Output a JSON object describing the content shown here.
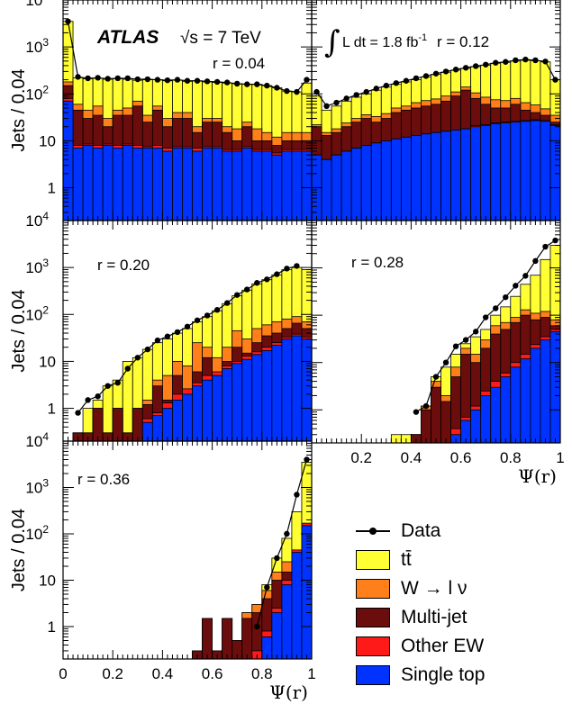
{
  "chart_data": [
    {
      "type": "area",
      "panel": "r = 0.04",
      "label": "r = 0.04",
      "ylabel": "Jets / 0.04",
      "yscale": "log",
      "ylim": [
        0.2,
        10000
      ],
      "xlim": [
        0,
        1
      ],
      "yticks": [
        "1",
        "10",
        "10²",
        "10³",
        "10⁴"
      ],
      "header": {
        "atlas": "ATLAS",
        "energy": "√s = 7 TeV"
      },
      "x_bins": [
        0,
        0.04,
        0.08,
        0.12,
        0.16,
        0.2,
        0.24,
        0.28,
        0.32,
        0.36,
        0.4,
        0.44,
        0.48,
        0.52,
        0.56,
        0.6,
        0.64,
        0.68,
        0.72,
        0.76,
        0.8,
        0.84,
        0.88,
        0.92,
        0.96
      ],
      "series": [
        {
          "name": "Single top",
          "values": [
            70,
            7,
            8,
            7,
            8,
            7,
            8,
            7,
            7,
            7,
            6,
            7,
            7,
            6,
            7,
            7,
            6,
            6,
            7,
            6,
            6,
            5,
            6,
            6,
            6
          ]
        },
        {
          "name": "Other EW",
          "values": [
            80,
            8,
            8.5,
            8,
            8.5,
            8,
            8.5,
            8,
            7.5,
            8,
            7,
            7.5,
            7.5,
            7,
            7.5,
            7.5,
            6.5,
            6.5,
            7.5,
            6.5,
            6.5,
            5.5,
            6.5,
            6.5,
            6.5
          ]
        },
        {
          "name": "Multi-jet",
          "values": [
            150,
            45,
            30,
            35,
            20,
            35,
            35,
            55,
            25,
            45,
            20,
            30,
            30,
            15,
            25,
            25,
            15,
            10,
            20,
            10,
            10,
            8,
            10,
            10,
            10
          ]
        },
        {
          "name": "W → l ν",
          "values": [
            180,
            60,
            45,
            55,
            30,
            45,
            50,
            70,
            35,
            55,
            30,
            40,
            40,
            20,
            30,
            30,
            20,
            18,
            25,
            18,
            15,
            12,
            15,
            15,
            15
          ]
        },
        {
          "name": "tt̄",
          "values": [
            3500,
            220,
            210,
            215,
            205,
            210,
            205,
            195,
            200,
            200,
            190,
            195,
            185,
            190,
            180,
            175,
            170,
            165,
            160,
            160,
            150,
            135,
            115,
            110,
            170
          ]
        }
      ],
      "data": {
        "name": "Data",
        "y": [
          3500,
          230,
          215,
          220,
          210,
          215,
          215,
          205,
          205,
          200,
          195,
          200,
          190,
          190,
          185,
          180,
          175,
          165,
          160,
          160,
          150,
          135,
          115,
          110,
          200
        ]
      }
    },
    {
      "type": "area",
      "panel": "r = 0.12",
      "label": "r = 0.12",
      "yscale": "log",
      "ylim": [
        0.2,
        10000
      ],
      "xlim": [
        0,
        1
      ],
      "header": {
        "lumi_base": "L dt = 1.8 fb",
        "lumi_exp": "-1"
      },
      "x_bins": [
        0,
        0.04,
        0.08,
        0.12,
        0.16,
        0.2,
        0.24,
        0.28,
        0.32,
        0.36,
        0.4,
        0.44,
        0.48,
        0.52,
        0.56,
        0.6,
        0.64,
        0.68,
        0.72,
        0.76,
        0.8,
        0.84,
        0.88,
        0.92,
        0.96
      ],
      "series": [
        {
          "name": "Single top",
          "values": [
            5,
            4,
            5,
            6,
            7,
            8,
            9,
            10,
            11,
            12,
            13,
            14,
            15,
            16,
            17,
            18,
            20,
            21,
            23,
            24,
            25,
            26,
            27,
            26,
            21
          ]
        },
        {
          "name": "Other EW",
          "values": [
            5,
            4,
            5,
            6,
            7,
            8,
            9,
            10,
            11,
            12,
            12,
            14,
            15,
            16,
            17,
            18,
            21,
            22,
            24,
            25,
            26,
            27,
            28,
            27,
            22
          ]
        },
        {
          "name": "Multi-jet",
          "values": [
            20,
            13,
            15,
            20,
            25,
            30,
            25,
            30,
            40,
            45,
            50,
            55,
            60,
            70,
            90,
            120,
            80,
            60,
            50,
            50,
            60,
            45,
            40,
            35,
            25
          ]
        },
        {
          "name": "W → l ν",
          "values": [
            22,
            15,
            18,
            24,
            30,
            36,
            33,
            38,
            50,
            55,
            65,
            72,
            78,
            90,
            110,
            140,
            105,
            85,
            75,
            72,
            80,
            65,
            58,
            48,
            35
          ]
        },
        {
          "name": "tt̄",
          "values": [
            90,
            45,
            55,
            70,
            85,
            100,
            120,
            140,
            160,
            180,
            200,
            230,
            260,
            290,
            320,
            350,
            380,
            410,
            450,
            470,
            500,
            520,
            510,
            480,
            200
          ]
        }
      ],
      "data": {
        "name": "Data",
        "y": [
          110,
          55,
          65,
          80,
          95,
          110,
          130,
          150,
          170,
          190,
          215,
          240,
          270,
          300,
          330,
          360,
          390,
          420,
          460,
          480,
          520,
          540,
          520,
          490,
          200
        ]
      }
    },
    {
      "type": "area",
      "panel": "r = 0.20",
      "label": "r = 0.20",
      "ylabel": "Jets / 0.04",
      "yscale": "log",
      "ylim": [
        0.2,
        10000
      ],
      "xlim": [
        0,
        1
      ],
      "yticks": [
        "1",
        "10",
        "10²",
        "10³",
        "10⁴"
      ],
      "x_bins": [
        0.04,
        0.08,
        0.12,
        0.16,
        0.2,
        0.24,
        0.28,
        0.32,
        0.36,
        0.4,
        0.44,
        0.48,
        0.52,
        0.56,
        0.6,
        0.64,
        0.68,
        0.72,
        0.76,
        0.8,
        0.84,
        0.88,
        0.92,
        0.96
      ],
      "series": [
        {
          "name": "Single top",
          "values": [
            0,
            0,
            0,
            0,
            0,
            0,
            0,
            0.5,
            0.7,
            1,
            1.5,
            2,
            3,
            4,
            5,
            7,
            9,
            11,
            14,
            17,
            22,
            30,
            35,
            30
          ]
        },
        {
          "name": "Other EW",
          "values": [
            0,
            0,
            0,
            0,
            0,
            0,
            0,
            0.6,
            0.8,
            1.3,
            2,
            2.6,
            3.5,
            5,
            6,
            8,
            10,
            13,
            16,
            20,
            25,
            33,
            38,
            33
          ]
        },
        {
          "name": "Multi-jet",
          "values": [
            0.3,
            0.3,
            1,
            0.3,
            1,
            0.3,
            1,
            1.2,
            3,
            1.5,
            5,
            2,
            6,
            12,
            4,
            10,
            20,
            15,
            25,
            35,
            40,
            50,
            65,
            50
          ]
        },
        {
          "name": "W → l ν",
          "values": [
            0.3,
            0.3,
            1,
            0.3,
            1,
            0.3,
            1,
            1.5,
            4,
            5,
            10,
            8,
            25,
            20,
            12,
            20,
            45,
            30,
            50,
            60,
            70,
            80,
            90,
            70
          ]
        },
        {
          "name": "tt̄",
          "values": [
            0.3,
            1,
            1.5,
            3,
            4,
            10,
            12,
            18,
            25,
            30,
            40,
            50,
            70,
            90,
            120,
            170,
            250,
            330,
            450,
            550,
            700,
            900,
            1000,
            900
          ]
        }
      ],
      "data": {
        "name": "Data",
        "x": [
          0.06,
          0.1,
          0.14,
          0.18,
          0.22,
          0.26,
          0.3,
          0.34,
          0.38,
          0.42,
          0.46,
          0.5,
          0.54,
          0.58,
          0.62,
          0.66,
          0.7,
          0.74,
          0.78,
          0.82,
          0.86,
          0.9,
          0.94
        ],
        "y": [
          0.8,
          1.5,
          1.8,
          3,
          3.5,
          7,
          12,
          18,
          28,
          34,
          42,
          55,
          75,
          95,
          125,
          175,
          260,
          340,
          470,
          560,
          720,
          950,
          1080
        ]
      }
    },
    {
      "type": "area",
      "panel": "r = 0.28",
      "label": "r = 0.28",
      "xlabel": "Ψ(r)",
      "yscale": "log",
      "ylim": [
        0.2,
        10000
      ],
      "xlim": [
        0,
        1
      ],
      "xticks": [
        "0.2",
        "0.4",
        "0.6",
        "0.8",
        "1"
      ],
      "x_bins": [
        0.32,
        0.36,
        0.4,
        0.44,
        0.48,
        0.52,
        0.56,
        0.6,
        0.64,
        0.68,
        0.72,
        0.76,
        0.8,
        0.84,
        0.88,
        0.92,
        0.96
      ],
      "series": [
        {
          "name": "Single top",
          "values": [
            0,
            0,
            0,
            0,
            0,
            0,
            0.3,
            0.6,
            1,
            2,
            3,
            5,
            8,
            12,
            20,
            30,
            45
          ]
        },
        {
          "name": "Other EW",
          "values": [
            0,
            0,
            0,
            0,
            0,
            0,
            0.4,
            0.7,
            1.2,
            2.5,
            4,
            6,
            10,
            15,
            24,
            35,
            50
          ]
        },
        {
          "name": "Multi-jet",
          "values": [
            0,
            0,
            0.3,
            1,
            3,
            1.5,
            5,
            15,
            10,
            20,
            40,
            50,
            70,
            100,
            80,
            90,
            60
          ]
        },
        {
          "name": "W → l ν",
          "values": [
            0,
            0,
            0.3,
            1.2,
            4,
            2,
            8,
            20,
            15,
            30,
            60,
            70,
            90,
            130,
            110,
            120,
            80
          ]
        },
        {
          "name": "tt̄",
          "values": [
            0.3,
            0.3,
            0.3,
            1.2,
            5,
            8,
            15,
            25,
            35,
            50,
            100,
            150,
            250,
            450,
            700,
            1500,
            3000
          ]
        }
      ],
      "data": {
        "name": "Data",
        "x": [
          0.42,
          0.46,
          0.5,
          0.54,
          0.58,
          0.62,
          0.66,
          0.7,
          0.74,
          0.78,
          0.82,
          0.86,
          0.9,
          0.94,
          0.98
        ],
        "y": [
          0.9,
          1.2,
          5,
          10,
          22,
          30,
          45,
          90,
          140,
          240,
          420,
          680,
          1400,
          2800,
          3800
        ]
      }
    },
    {
      "type": "area",
      "panel": "r = 0.36",
      "label": "r = 0.36",
      "ylabel": "Jets / 0.04",
      "xlabel": "Ψ(r)",
      "yscale": "log",
      "ylim": [
        0.2,
        10000
      ],
      "xlim": [
        0,
        1
      ],
      "xticks": [
        "0",
        "0.2",
        "0.4",
        "0.6",
        "0.8",
        "1"
      ],
      "yticks": [
        "1",
        "10",
        "10²",
        "10³",
        "10⁴"
      ],
      "x_bins": [
        0.52,
        0.56,
        0.6,
        0.64,
        0.68,
        0.72,
        0.76,
        0.8,
        0.84,
        0.88,
        0.92,
        0.96
      ],
      "series": [
        {
          "name": "Single top",
          "values": [
            0,
            0,
            0,
            0,
            0,
            0,
            0,
            0.6,
            2,
            8,
            40,
            150
          ]
        },
        {
          "name": "Other EW",
          "values": [
            0,
            0,
            0,
            0,
            0,
            0,
            0.3,
            0.8,
            2.5,
            10,
            45,
            170
          ]
        },
        {
          "name": "Multi-jet",
          "values": [
            0.3,
            1.5,
            0.3,
            1.5,
            0.5,
            1.5,
            2,
            4,
            10,
            15,
            20,
            50
          ]
        },
        {
          "name": "W → l ν",
          "values": [
            0.3,
            1.5,
            0.3,
            1.5,
            0.5,
            2,
            3,
            6,
            15,
            25,
            30,
            70
          ]
        },
        {
          "name": "tt̄",
          "values": [
            0.3,
            1.5,
            0.3,
            1.5,
            0.5,
            2,
            3,
            8,
            30,
            80,
            300,
            3500
          ]
        }
      ],
      "data": {
        "name": "Data",
        "x": [
          0.78,
          0.82,
          0.86,
          0.9,
          0.94,
          0.98
        ],
        "y": [
          1,
          7,
          30,
          100,
          700,
          4000
        ]
      }
    }
  ],
  "legend": [
    {
      "label": "Data",
      "kind": "line",
      "color": "#000000"
    },
    {
      "label": "tt̄",
      "kind": "box",
      "color": "#ffff33"
    },
    {
      "label": "W → l ν",
      "kind": "box",
      "color": "#ff7f1a"
    },
    {
      "label": "Multi-jet",
      "kind": "box",
      "color": "#6b0d0d"
    },
    {
      "label": "Other EW",
      "kind": "box",
      "color": "#ff1a1a"
    },
    {
      "label": "Single top",
      "kind": "box",
      "color": "#0033ff"
    }
  ],
  "colors": {
    "tt̄": "#ffff33",
    "W → l ν": "#ff7f1a",
    "Multi-jet": "#6b0d0d",
    "Other EW": "#ff1a1a",
    "Single top": "#0033ff"
  }
}
